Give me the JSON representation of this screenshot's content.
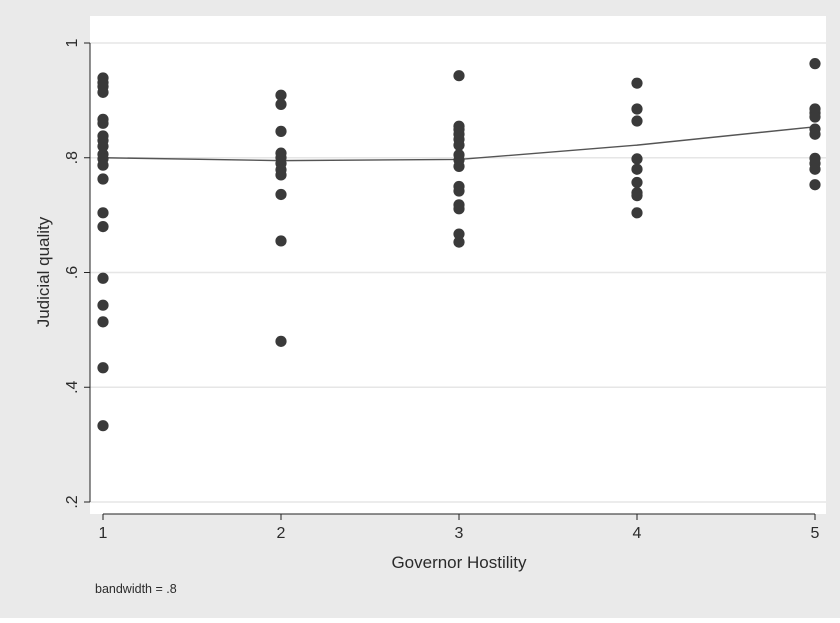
{
  "chart_data": {
    "type": "scatter",
    "title": "",
    "xlabel": "Governor Hostility",
    "ylabel": "Judicial quality",
    "note": "bandwidth = .8",
    "xlim": [
      1,
      5
    ],
    "ylim": [
      0.2,
      1.0
    ],
    "xticks": [
      {
        "value": 1,
        "label": "1"
      },
      {
        "value": 2,
        "label": "2"
      },
      {
        "value": 3,
        "label": "3"
      },
      {
        "value": 4,
        "label": "4"
      },
      {
        "value": 5,
        "label": "5"
      }
    ],
    "yticks": [
      {
        "value": 0.2,
        "label": ".2"
      },
      {
        "value": 0.4,
        "label": ".4"
      },
      {
        "value": 0.6,
        "label": ".6"
      },
      {
        "value": 0.8,
        "label": ".8"
      },
      {
        "value": 1.0,
        "label": "1"
      }
    ],
    "grid": true,
    "legend": "none",
    "colors": {
      "outer_background": "#eaeaea",
      "plot_background": "#ffffff",
      "grid": "#e6e6e6",
      "points": "#3a3a3a",
      "fit_line": "#555555",
      "axis": "#222222"
    },
    "points": [
      {
        "x": 1,
        "y": 0.939
      },
      {
        "x": 1,
        "y": 0.931
      },
      {
        "x": 1,
        "y": 0.924
      },
      {
        "x": 1,
        "y": 0.914
      },
      {
        "x": 1,
        "y": 0.867
      },
      {
        "x": 1,
        "y": 0.86
      },
      {
        "x": 1,
        "y": 0.838
      },
      {
        "x": 1,
        "y": 0.83
      },
      {
        "x": 1,
        "y": 0.82
      },
      {
        "x": 1,
        "y": 0.806
      },
      {
        "x": 1,
        "y": 0.798
      },
      {
        "x": 1,
        "y": 0.787
      },
      {
        "x": 1,
        "y": 0.763
      },
      {
        "x": 1,
        "y": 0.704
      },
      {
        "x": 1,
        "y": 0.68
      },
      {
        "x": 1,
        "y": 0.59
      },
      {
        "x": 1,
        "y": 0.543
      },
      {
        "x": 1,
        "y": 0.514
      },
      {
        "x": 1,
        "y": 0.434
      },
      {
        "x": 1,
        "y": 0.333
      },
      {
        "x": 2,
        "y": 0.909
      },
      {
        "x": 2,
        "y": 0.893
      },
      {
        "x": 2,
        "y": 0.846
      },
      {
        "x": 2,
        "y": 0.808
      },
      {
        "x": 2,
        "y": 0.8
      },
      {
        "x": 2,
        "y": 0.79
      },
      {
        "x": 2,
        "y": 0.779
      },
      {
        "x": 2,
        "y": 0.77
      },
      {
        "x": 2,
        "y": 0.736
      },
      {
        "x": 2,
        "y": 0.655
      },
      {
        "x": 2,
        "y": 0.48
      },
      {
        "x": 3,
        "y": 0.943
      },
      {
        "x": 3,
        "y": 0.855
      },
      {
        "x": 3,
        "y": 0.849
      },
      {
        "x": 3,
        "y": 0.841
      },
      {
        "x": 3,
        "y": 0.832
      },
      {
        "x": 3,
        "y": 0.822
      },
      {
        "x": 3,
        "y": 0.805
      },
      {
        "x": 3,
        "y": 0.796
      },
      {
        "x": 3,
        "y": 0.785
      },
      {
        "x": 3,
        "y": 0.75
      },
      {
        "x": 3,
        "y": 0.742
      },
      {
        "x": 3,
        "y": 0.718
      },
      {
        "x": 3,
        "y": 0.711
      },
      {
        "x": 3,
        "y": 0.667
      },
      {
        "x": 3,
        "y": 0.653
      },
      {
        "x": 4,
        "y": 0.93
      },
      {
        "x": 4,
        "y": 0.885
      },
      {
        "x": 4,
        "y": 0.864
      },
      {
        "x": 4,
        "y": 0.798
      },
      {
        "x": 4,
        "y": 0.78
      },
      {
        "x": 4,
        "y": 0.757
      },
      {
        "x": 4,
        "y": 0.739
      },
      {
        "x": 4,
        "y": 0.734
      },
      {
        "x": 4,
        "y": 0.704
      },
      {
        "x": 5,
        "y": 0.964
      },
      {
        "x": 5,
        "y": 0.885
      },
      {
        "x": 5,
        "y": 0.878
      },
      {
        "x": 5,
        "y": 0.871
      },
      {
        "x": 5,
        "y": 0.85
      },
      {
        "x": 5,
        "y": 0.841
      },
      {
        "x": 5,
        "y": 0.799
      },
      {
        "x": 5,
        "y": 0.79
      },
      {
        "x": 5,
        "y": 0.78
      },
      {
        "x": 5,
        "y": 0.753
      }
    ],
    "fit_line": {
      "x": [
        1,
        2,
        3,
        4,
        5
      ],
      "y": [
        0.8,
        0.795,
        0.797,
        0.822,
        0.854
      ]
    }
  }
}
